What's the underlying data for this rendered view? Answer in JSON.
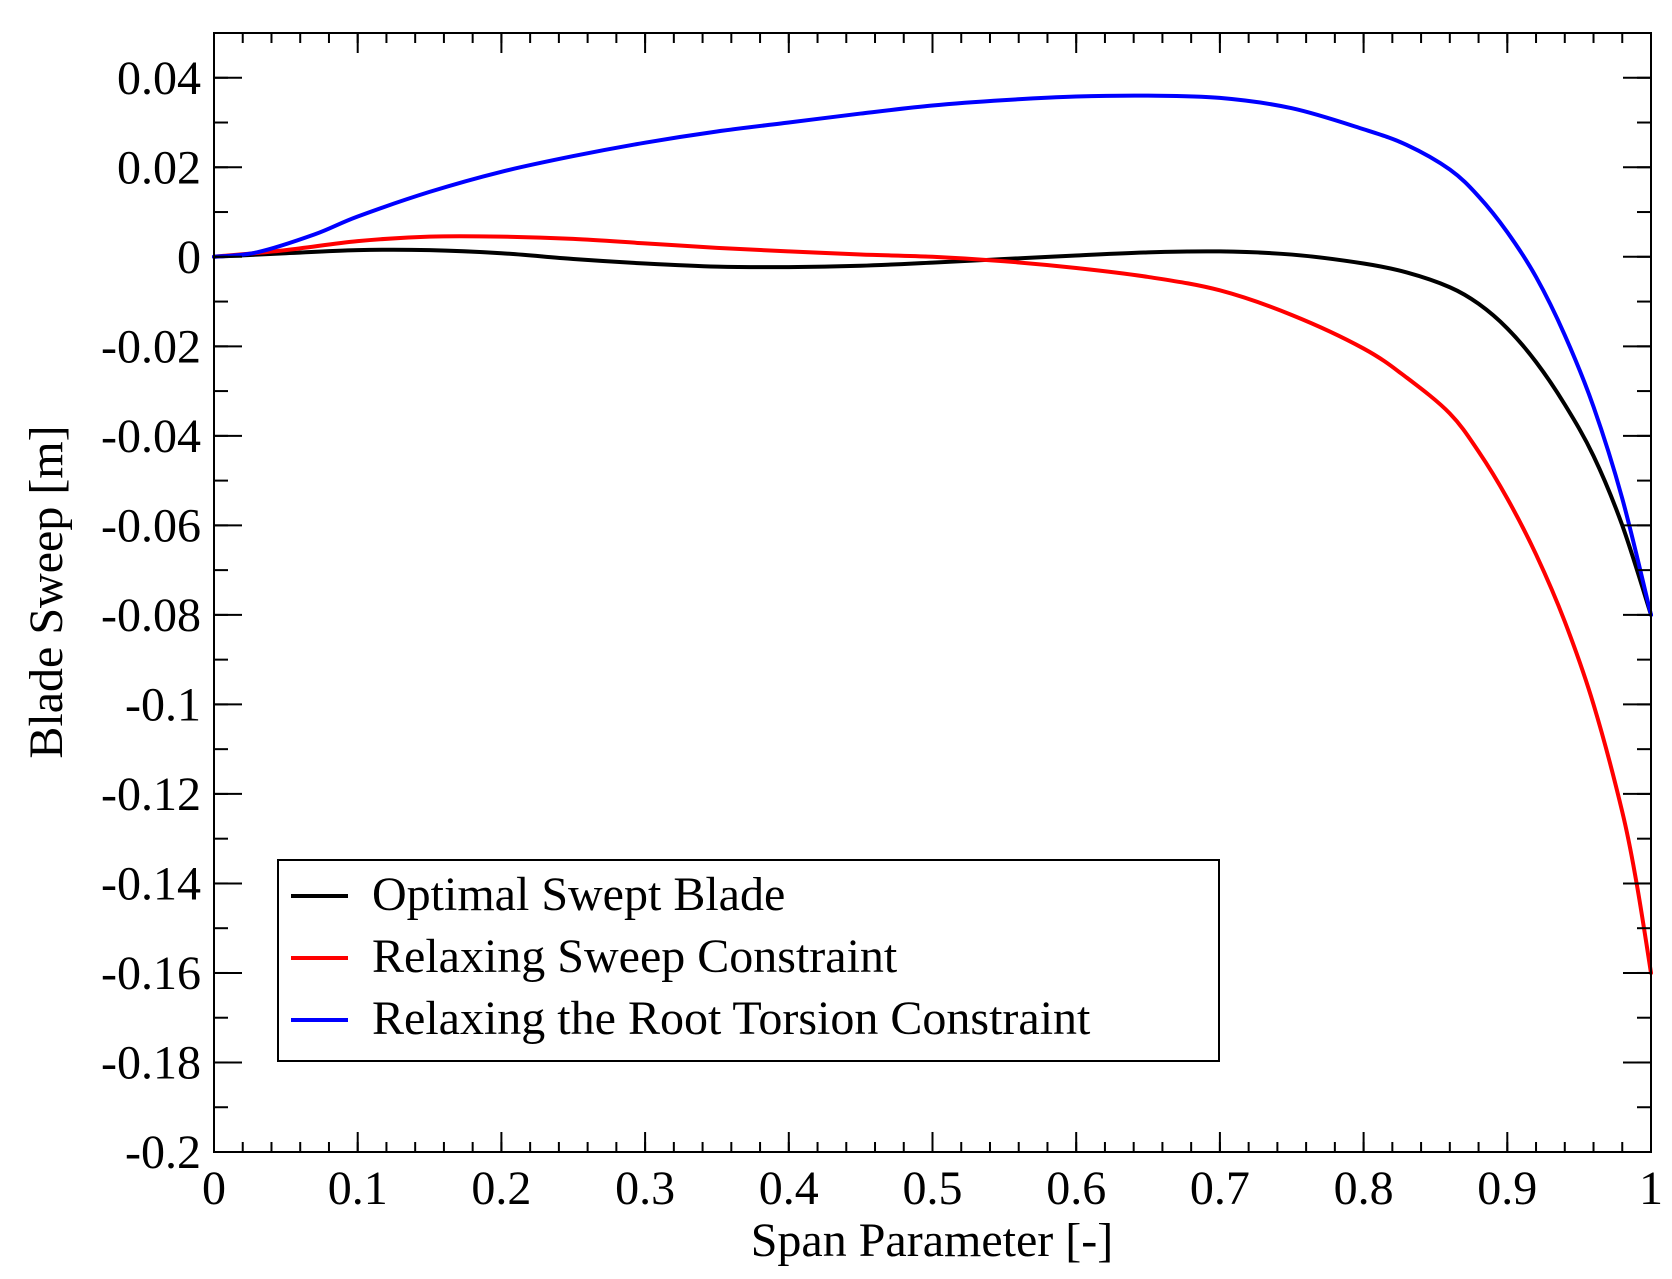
{
  "chart_data": {
    "type": "line",
    "title": "",
    "xlabel": "Span Parameter [-]",
    "ylabel": "Blade Sweep [m]",
    "xlim": [
      0,
      1
    ],
    "ylim": [
      -0.2,
      0.05
    ],
    "xticks": [
      0,
      0.1,
      0.2,
      0.3,
      0.4,
      0.5,
      0.6,
      0.7,
      0.8,
      0.9,
      1
    ],
    "xtick_labels": [
      "0",
      "0.1",
      "0.2",
      "0.3",
      "0.4",
      "0.5",
      "0.6",
      "0.7",
      "0.8",
      "0.9",
      "1"
    ],
    "yticks": [
      -0.2,
      -0.18,
      -0.16,
      -0.14,
      -0.12,
      -0.1,
      -0.08,
      -0.06,
      -0.04,
      -0.02,
      0,
      0.02,
      0.04
    ],
    "ytick_labels": [
      "-0.2",
      "-0.18",
      "-0.16",
      "-0.14",
      "-0.12",
      "-0.1",
      "-0.08",
      "-0.06",
      "-0.04",
      "-0.02",
      "0",
      "0.02",
      "0.04"
    ],
    "x_minor_step": 0.02,
    "y_minor_step": 0.01,
    "grid": false,
    "legend_position": "bottom-left",
    "series": [
      {
        "name": "Optimal Swept Blade",
        "color": "#000000",
        "x": [
          0,
          0.05,
          0.1,
          0.15,
          0.2,
          0.25,
          0.3,
          0.35,
          0.4,
          0.45,
          0.5,
          0.55,
          0.6,
          0.65,
          0.7,
          0.75,
          0.8,
          0.83,
          0.86,
          0.88,
          0.9,
          0.92,
          0.94,
          0.96,
          0.98,
          1.0
        ],
        "y": [
          0,
          0.0008,
          0.0015,
          0.0015,
          0.0008,
          -0.0005,
          -0.0015,
          -0.0022,
          -0.0023,
          -0.002,
          -0.0013,
          -0.0005,
          0.0003,
          0.001,
          0.0012,
          0.0005,
          -0.0015,
          -0.0035,
          -0.0068,
          -0.0105,
          -0.016,
          -0.0235,
          -0.033,
          -0.0445,
          -0.06,
          -0.08
        ]
      },
      {
        "name": "Relaxing Sweep Constraint",
        "color": "#ff0000",
        "x": [
          0,
          0.05,
          0.1,
          0.15,
          0.2,
          0.25,
          0.3,
          0.35,
          0.4,
          0.45,
          0.5,
          0.55,
          0.6,
          0.65,
          0.7,
          0.75,
          0.8,
          0.83,
          0.86,
          0.88,
          0.9,
          0.92,
          0.94,
          0.96,
          0.98,
          0.99,
          1.0
        ],
        "y": [
          0,
          0.0015,
          0.0035,
          0.0045,
          0.0045,
          0.004,
          0.003,
          0.002,
          0.0012,
          0.0005,
          0,
          -0.001,
          -0.0025,
          -0.0045,
          -0.0075,
          -0.013,
          -0.0205,
          -0.027,
          -0.035,
          -0.0435,
          -0.054,
          -0.0665,
          -0.0815,
          -0.1,
          -0.124,
          -0.14,
          -0.16
        ]
      },
      {
        "name": "Relaxing the Root Torsion Constraint",
        "color": "#0000ff",
        "x": [
          0,
          0.03,
          0.07,
          0.1,
          0.15,
          0.2,
          0.25,
          0.3,
          0.35,
          0.4,
          0.45,
          0.5,
          0.55,
          0.6,
          0.65,
          0.7,
          0.75,
          0.8,
          0.83,
          0.86,
          0.88,
          0.9,
          0.92,
          0.94,
          0.96,
          0.98,
          1.0
        ],
        "y": [
          0,
          0.001,
          0.005,
          0.009,
          0.0145,
          0.019,
          0.0225,
          0.0255,
          0.028,
          0.03,
          0.032,
          0.0338,
          0.035,
          0.0358,
          0.036,
          0.0355,
          0.0332,
          0.0285,
          0.025,
          0.0195,
          0.0135,
          0.0055,
          -0.0045,
          -0.0175,
          -0.0335,
          -0.054,
          -0.08
        ]
      }
    ]
  }
}
